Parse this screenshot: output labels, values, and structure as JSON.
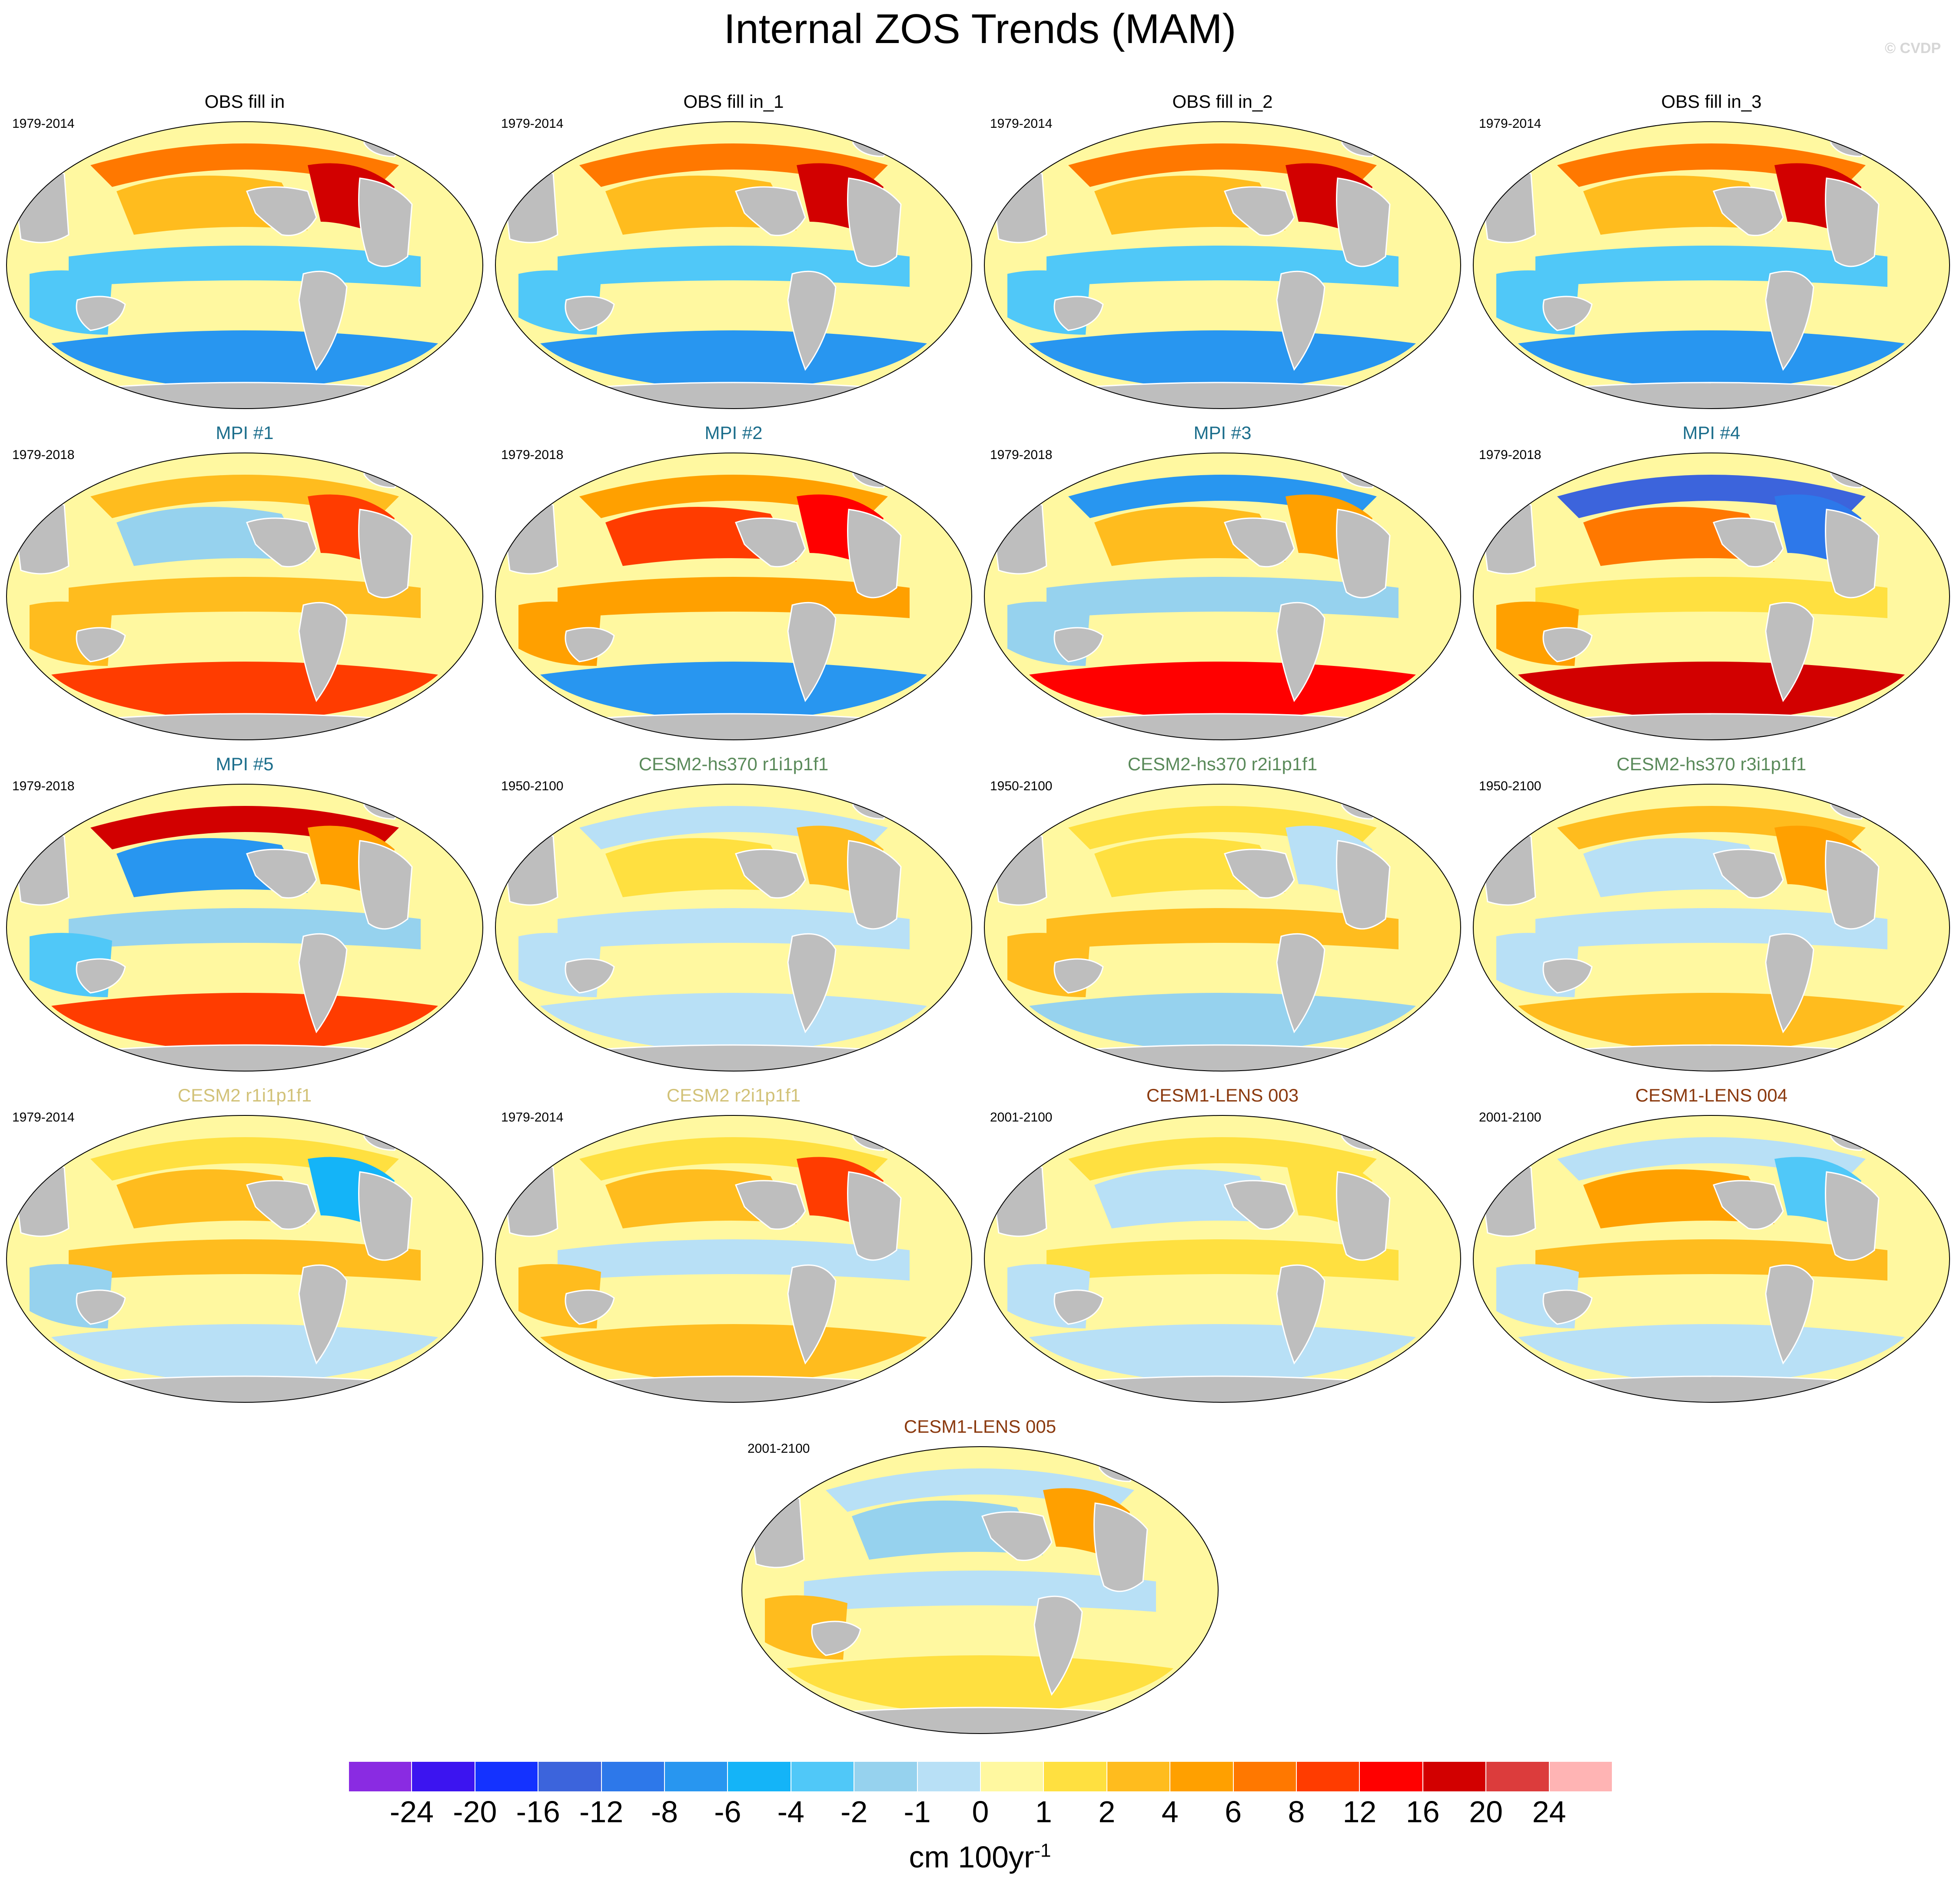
{
  "title": "Internal ZOS Trends (MAM)",
  "copyright": "© CVDP",
  "colorbar": {
    "units_base": "cm 100yr",
    "units_exponent": "-1",
    "levels": [
      "-24",
      "-20",
      "-16",
      "-12",
      "-8",
      "-6",
      "-4",
      "-2",
      "-1",
      "0",
      "1",
      "2",
      "4",
      "6",
      "8",
      "12",
      "16",
      "20",
      "24"
    ],
    "colors": [
      "#8a2be2",
      "#3c14f0",
      "#1432ff",
      "#3c64dc",
      "#2d78ea",
      "#2896f0",
      "#14b4f8",
      "#50c8f8",
      "#96d2ee",
      "#b8e0f6",
      "#fff8a0",
      "#ffe040",
      "#ffbc1e",
      "#ffa000",
      "#ff7800",
      "#ff3c00",
      "#ff0000",
      "#d20000",
      "#dc3c3c",
      "#ffb4b4"
    ]
  },
  "panels": [
    {
      "title": "OBS fill in",
      "years": "1979-2014",
      "title_color": "#000000",
      "pattern": {
        "pacific": 3,
        "tropics": -4,
        "north_atlantic": 16,
        "southern": -8,
        "indian": -4,
        "arctic": 6
      }
    },
    {
      "title": "OBS fill in_1",
      "years": "1979-2014",
      "title_color": "#000000",
      "pattern": {
        "pacific": 3,
        "tropics": -4,
        "north_atlantic": 16,
        "southern": -8,
        "indian": -4,
        "arctic": 6
      }
    },
    {
      "title": "OBS fill in_2",
      "years": "1979-2014",
      "title_color": "#000000",
      "pattern": {
        "pacific": 3,
        "tropics": -4,
        "north_atlantic": 16,
        "southern": -8,
        "indian": -4,
        "arctic": 6
      }
    },
    {
      "title": "OBS fill in_3",
      "years": "1979-2014",
      "title_color": "#000000",
      "pattern": {
        "pacific": 3,
        "tropics": -4,
        "north_atlantic": 16,
        "southern": -8,
        "indian": -4,
        "arctic": 6
      }
    },
    {
      "title": "MPI #1",
      "years": "1979-2018",
      "title_color": "#1c6e8c",
      "pattern": {
        "pacific": -2,
        "tropics": 2,
        "north_atlantic": 8,
        "southern": 8,
        "indian": 2,
        "arctic": 2
      }
    },
    {
      "title": "MPI #2",
      "years": "1979-2018",
      "title_color": "#1c6e8c",
      "pattern": {
        "pacific": 8,
        "tropics": 4,
        "north_atlantic": 12,
        "southern": -8,
        "indian": 4,
        "arctic": 4
      }
    },
    {
      "title": "MPI #3",
      "years": "1979-2018",
      "title_color": "#1c6e8c",
      "pattern": {
        "pacific": 2,
        "tropics": -2,
        "north_atlantic": 4,
        "southern": 12,
        "indian": -2,
        "arctic": -8
      }
    },
    {
      "title": "MPI #4",
      "years": "1979-2018",
      "title_color": "#1c6e8c",
      "pattern": {
        "pacific": 6,
        "tropics": 1,
        "north_atlantic": -12,
        "southern": 16,
        "indian": 4,
        "arctic": -16
      }
    },
    {
      "title": "MPI #5",
      "years": "1979-2018",
      "title_color": "#1c6e8c",
      "pattern": {
        "pacific": -8,
        "tropics": -2,
        "north_atlantic": 4,
        "southern": 8,
        "indian": -4,
        "arctic": 16
      }
    },
    {
      "title": "CESM2-hs370 r1i1p1f1",
      "years": "1950-2100",
      "title_color": "#5a8a5a",
      "pattern": {
        "pacific": 1,
        "tropics": -1,
        "north_atlantic": 2,
        "southern": -1,
        "indian": -1,
        "arctic": -1
      }
    },
    {
      "title": "CESM2-hs370 r2i1p1f1",
      "years": "1950-2100",
      "title_color": "#5a8a5a",
      "pattern": {
        "pacific": 1,
        "tropics": 2,
        "north_atlantic": -1,
        "southern": -2,
        "indian": 2,
        "arctic": 1
      }
    },
    {
      "title": "CESM2-hs370 r3i1p1f1",
      "years": "1950-2100",
      "title_color": "#5a8a5a",
      "pattern": {
        "pacific": -1,
        "tropics": -1,
        "north_atlantic": 4,
        "southern": 2,
        "indian": -1,
        "arctic": 2
      }
    },
    {
      "title": "CESM2 r1i1p1f1",
      "years": "1979-2014",
      "title_color": "#d2c278",
      "pattern": {
        "pacific": 2,
        "tropics": 2,
        "north_atlantic": -6,
        "southern": -1,
        "indian": -2,
        "arctic": 1
      }
    },
    {
      "title": "CESM2 r2i1p1f1",
      "years": "1979-2014",
      "title_color": "#d2c278",
      "pattern": {
        "pacific": 2,
        "tropics": -1,
        "north_atlantic": 8,
        "southern": 2,
        "indian": 2,
        "arctic": 1
      }
    },
    {
      "title": "CESM1-LENS 003",
      "years": "2001-2100",
      "title_color": "#8b3a0f",
      "pattern": {
        "pacific": -1,
        "tropics": 1,
        "north_atlantic": 1,
        "southern": -1,
        "indian": -1,
        "arctic": 1
      }
    },
    {
      "title": "CESM1-LENS 004",
      "years": "2001-2100",
      "title_color": "#8b3a0f",
      "pattern": {
        "pacific": 4,
        "tropics": 2,
        "north_atlantic": -4,
        "southern": -1,
        "indian": -1,
        "arctic": -1
      }
    },
    {
      "title": "CESM1-LENS 005",
      "years": "2001-2100",
      "title_color": "#8b3a0f",
      "pattern": {
        "pacific": -2,
        "tropics": -1,
        "north_atlantic": 4,
        "southern": 1,
        "indian": 2,
        "arctic": -1
      }
    }
  ]
}
